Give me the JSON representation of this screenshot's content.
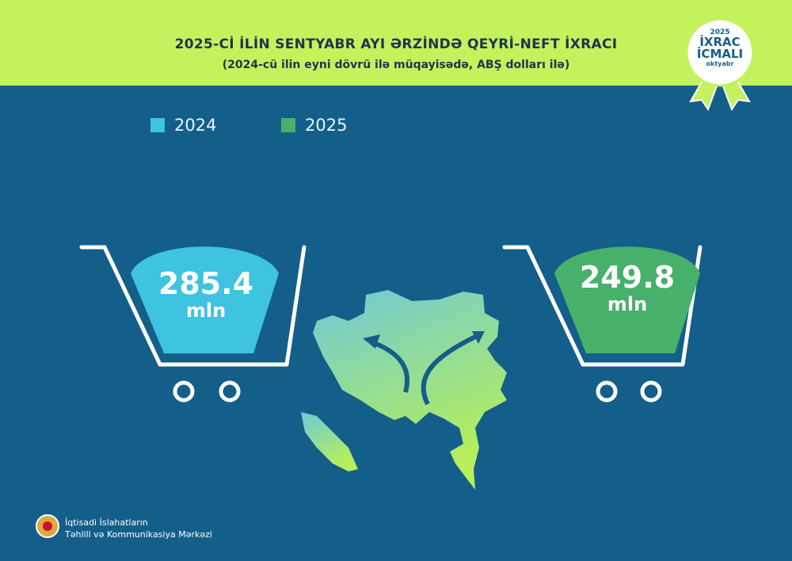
{
  "header": {
    "title": "2025-Cİ İLİN SENTYABR AYI ƏRZİNDƏ QEYRİ-NEFT İXRACI",
    "subtitle": "(2024-cü ilin eyni dövrü ilə müqayisədə, ABŞ dolları ilə)"
  },
  "badge": {
    "year": "2025",
    "line1": "İXRAC",
    "line2": "İCMALI",
    "month": "oktyabr"
  },
  "colors": {
    "header": "#c3f25c",
    "background": "#135f8a",
    "c2024": "#3ec3e1",
    "c2025": "#47b06a"
  },
  "chart_data": {
    "type": "bar",
    "categories": [
      "2024",
      "2025"
    ],
    "values": [
      285.4,
      249.8
    ],
    "unit": "mln",
    "labels": [
      "285.4",
      "249.8"
    ],
    "legend": [
      "2024",
      "2025"
    ],
    "legend_placement": "top-left"
  },
  "footer": {
    "line1": "İqtisadi İslahatların",
    "line2": "Təhlili və Kommunikasiya Mərkəzi"
  }
}
